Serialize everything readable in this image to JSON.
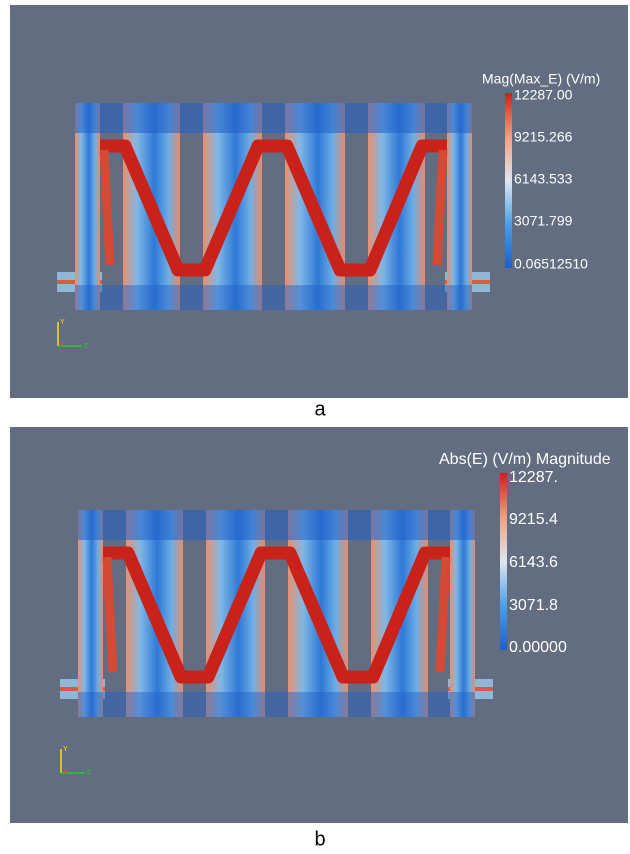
{
  "panels": [
    {
      "label": "a",
      "colorbar": {
        "title": "Mag(Max_E) (V/m)",
        "labels": [
          "12287.00",
          "9215.266",
          "6143.533",
          "3071.799",
          "0.06512510"
        ]
      },
      "axes": {
        "y": "Y",
        "x": "X",
        "z": "Z"
      }
    },
    {
      "label": "b",
      "colorbar": {
        "title": "Abs(E) (V/m) Magnitude",
        "labels": [
          "12287.",
          "9215.4",
          "6143.6",
          "3071.8",
          "0.00000"
        ]
      },
      "axes": {
        "y": "Y",
        "x": "X",
        "z": "Z"
      }
    }
  ]
}
